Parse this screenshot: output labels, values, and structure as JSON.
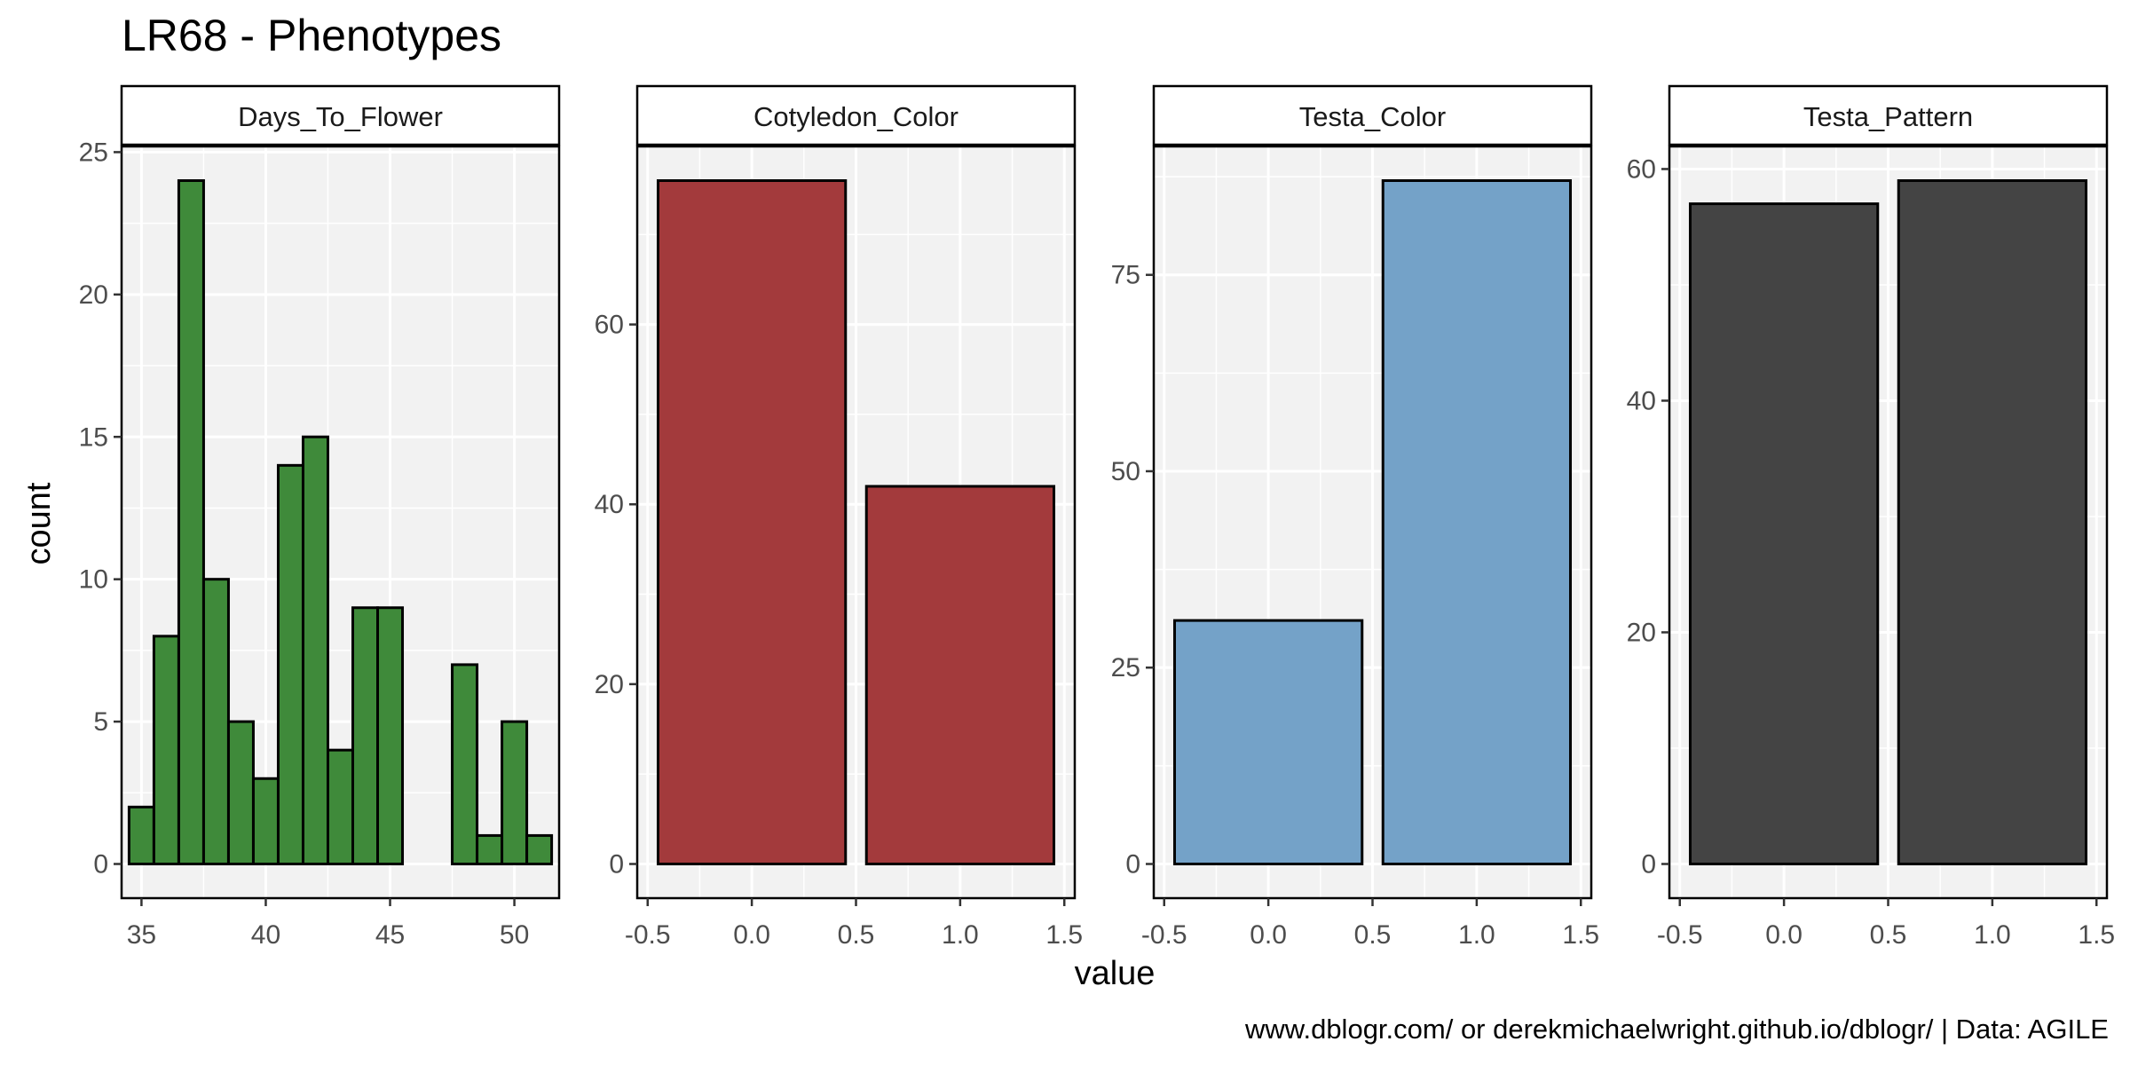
{
  "title": "LR68 - Phenotypes",
  "caption": "www.dblogr.com/ or derekmichaelwright.github.io/dblogr/ | Data: AGILE",
  "chart_data": {
    "type": "bar",
    "xlabel": "value",
    "ylabel": "count",
    "grid": true,
    "facets": [
      {
        "name": "Days_To_Flower",
        "type": "histogram",
        "bin_width": 1,
        "fill": "#3f8a3a",
        "xlim": [
          34.2,
          51.8
        ],
        "ylim": [
          -1.2,
          25.2
        ],
        "xticks": [
          35,
          40,
          45,
          50
        ],
        "yticks": [
          0,
          5,
          10,
          15,
          20,
          25
        ],
        "bins": [
          {
            "x": 35,
            "count": 2
          },
          {
            "x": 36,
            "count": 8
          },
          {
            "x": 37,
            "count": 24
          },
          {
            "x": 38,
            "count": 10
          },
          {
            "x": 39,
            "count": 5
          },
          {
            "x": 40,
            "count": 3
          },
          {
            "x": 41,
            "count": 14
          },
          {
            "x": 42,
            "count": 15
          },
          {
            "x": 43,
            "count": 4
          },
          {
            "x": 44,
            "count": 9
          },
          {
            "x": 45,
            "count": 9
          },
          {
            "x": 46,
            "count": 0
          },
          {
            "x": 47,
            "count": 0
          },
          {
            "x": 48,
            "count": 7
          },
          {
            "x": 49,
            "count": 1
          },
          {
            "x": 50,
            "count": 5
          },
          {
            "x": 51,
            "count": 1
          }
        ]
      },
      {
        "name": "Cotyledon_Color",
        "type": "bar",
        "fill": "#a33a3c",
        "xlim": [
          -0.55,
          1.55
        ],
        "ylim": [
          -3.8,
          79.8
        ],
        "xticks": [
          -0.5,
          0.0,
          0.5,
          1.0,
          1.5
        ],
        "yticks": [
          0,
          20,
          40,
          60
        ],
        "x": [
          0,
          1
        ],
        "values": [
          76,
          42
        ]
      },
      {
        "name": "Testa_Color",
        "type": "bar",
        "fill": "#74a2c8",
        "xlim": [
          -0.55,
          1.55
        ],
        "ylim": [
          -4.35,
          91.35
        ],
        "xticks": [
          -0.5,
          0.0,
          0.5,
          1.0,
          1.5
        ],
        "yticks": [
          0,
          25,
          50,
          75
        ],
        "x": [
          0,
          1
        ],
        "values": [
          31,
          87
        ]
      },
      {
        "name": "Testa_Pattern",
        "type": "bar",
        "fill": "#444444",
        "xlim": [
          -0.55,
          1.55
        ],
        "ylim": [
          -2.95,
          61.95
        ],
        "xticks": [
          -0.5,
          0.0,
          0.5,
          1.0,
          1.5
        ],
        "yticks": [
          0,
          20,
          40,
          60
        ],
        "x": [
          0,
          1
        ],
        "values": [
          57,
          59
        ]
      }
    ]
  }
}
